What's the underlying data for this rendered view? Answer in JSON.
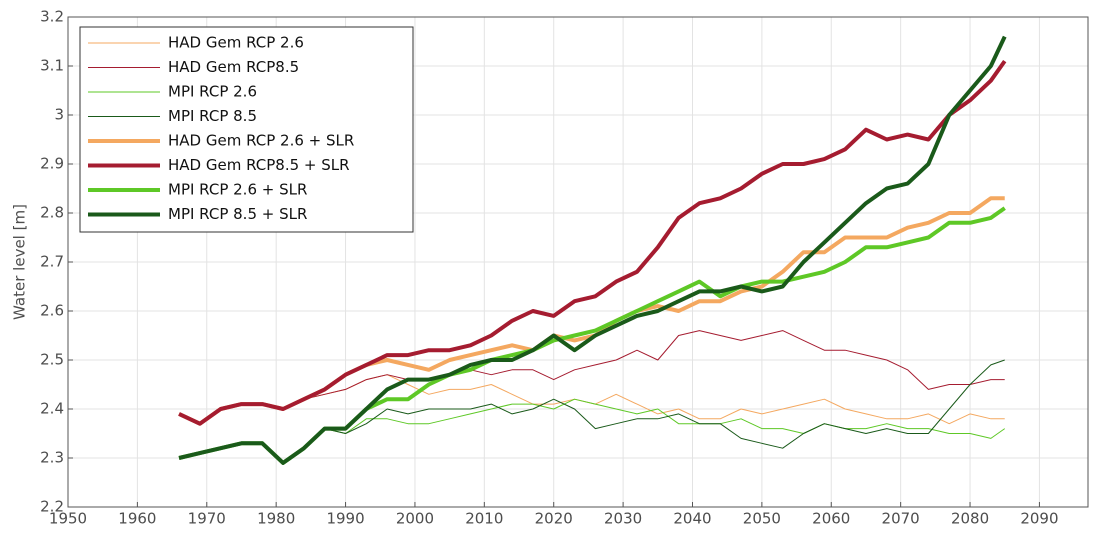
{
  "chart_data": {
    "type": "line",
    "y_label": "Water level [m]",
    "xlim": [
      1950,
      2097
    ],
    "xticks": [
      1950,
      1960,
      1970,
      1980,
      1990,
      2000,
      2010,
      2020,
      2030,
      2040,
      2050,
      2060,
      2070,
      2080,
      2090
    ],
    "ylim": [
      2.2,
      3.2
    ],
    "yticks": [
      2.2,
      2.3,
      2.4,
      2.5,
      2.6,
      2.7,
      2.8,
      2.9,
      3,
      3.1,
      3.2
    ],
    "grid": true,
    "legend": "upper left",
    "x": [
      1966,
      1969,
      1972,
      1975,
      1978,
      1981,
      1984,
      1987,
      1990,
      1993,
      1996,
      1999,
      2002,
      2005,
      2008,
      2011,
      2014,
      2017,
      2020,
      2023,
      2026,
      2029,
      2032,
      2035,
      2038,
      2041,
      2044,
      2047,
      2050,
      2053,
      2056,
      2059,
      2062,
      2065,
      2068,
      2071,
      2074,
      2077,
      2080,
      2083,
      2085
    ],
    "series": [
      {
        "name": "HAD Gem RCP 2.6",
        "color": "#f4a860",
        "linewidth": 1,
        "values": [
          2.39,
          2.37,
          2.4,
          2.41,
          2.41,
          2.4,
          2.42,
          2.43,
          2.44,
          2.46,
          2.47,
          2.45,
          2.43,
          2.44,
          2.44,
          2.45,
          2.43,
          2.41,
          2.41,
          2.42,
          2.41,
          2.43,
          2.41,
          2.39,
          2.4,
          2.38,
          2.38,
          2.4,
          2.39,
          2.4,
          2.41,
          2.42,
          2.4,
          2.39,
          2.38,
          2.38,
          2.39,
          2.37,
          2.39,
          2.38,
          2.38
        ]
      },
      {
        "name": "HAD Gem RCP8.5",
        "color": "#a51c30",
        "linewidth": 1,
        "values": [
          2.39,
          2.37,
          2.4,
          2.41,
          2.41,
          2.4,
          2.42,
          2.43,
          2.44,
          2.46,
          2.47,
          2.46,
          2.46,
          2.47,
          2.48,
          2.47,
          2.48,
          2.48,
          2.46,
          2.48,
          2.49,
          2.5,
          2.52,
          2.5,
          2.55,
          2.56,
          2.55,
          2.54,
          2.55,
          2.56,
          2.54,
          2.52,
          2.52,
          2.51,
          2.5,
          2.48,
          2.44,
          2.45,
          2.45,
          2.46,
          2.46
        ]
      },
      {
        "name": "MPI RCP 2.6",
        "color": "#5ec826",
        "linewidth": 1,
        "values": [
          2.3,
          2.31,
          2.32,
          2.33,
          2.33,
          2.29,
          2.32,
          2.36,
          2.35,
          2.38,
          2.38,
          2.37,
          2.37,
          2.38,
          2.39,
          2.4,
          2.41,
          2.41,
          2.4,
          2.42,
          2.41,
          2.4,
          2.39,
          2.4,
          2.37,
          2.37,
          2.37,
          2.38,
          2.36,
          2.36,
          2.35,
          2.37,
          2.36,
          2.36,
          2.37,
          2.36,
          2.36,
          2.35,
          2.35,
          2.34,
          2.36
        ]
      },
      {
        "name": "MPI RCP 8.5",
        "color": "#1a5a1a",
        "linewidth": 1,
        "values": [
          2.3,
          2.31,
          2.32,
          2.33,
          2.33,
          2.29,
          2.32,
          2.36,
          2.35,
          2.37,
          2.4,
          2.39,
          2.4,
          2.4,
          2.4,
          2.41,
          2.39,
          2.4,
          2.42,
          2.4,
          2.36,
          2.37,
          2.38,
          2.38,
          2.39,
          2.37,
          2.37,
          2.34,
          2.33,
          2.32,
          2.35,
          2.37,
          2.36,
          2.35,
          2.36,
          2.35,
          2.35,
          2.4,
          2.45,
          2.49,
          2.5
        ]
      },
      {
        "name": "HAD Gem RCP 2.6 + SLR",
        "color": "#f4a860",
        "linewidth": 4,
        "values": [
          2.39,
          2.37,
          2.4,
          2.41,
          2.41,
          2.4,
          2.42,
          2.44,
          2.47,
          2.49,
          2.5,
          2.49,
          2.48,
          2.5,
          2.51,
          2.52,
          2.53,
          2.52,
          2.55,
          2.54,
          2.55,
          2.58,
          2.6,
          2.61,
          2.6,
          2.62,
          2.62,
          2.64,
          2.65,
          2.68,
          2.72,
          2.72,
          2.75,
          2.75,
          2.75,
          2.77,
          2.78,
          2.8,
          2.8,
          2.83,
          2.83
        ]
      },
      {
        "name": "HAD Gem RCP8.5 + SLR",
        "color": "#a51c30",
        "linewidth": 4,
        "values": [
          2.39,
          2.37,
          2.4,
          2.41,
          2.41,
          2.4,
          2.42,
          2.44,
          2.47,
          2.49,
          2.51,
          2.51,
          2.52,
          2.52,
          2.53,
          2.55,
          2.58,
          2.6,
          2.59,
          2.62,
          2.63,
          2.66,
          2.68,
          2.73,
          2.79,
          2.82,
          2.83,
          2.85,
          2.88,
          2.9,
          2.9,
          2.91,
          2.93,
          2.97,
          2.95,
          2.96,
          2.95,
          3.0,
          3.03,
          3.07,
          3.11
        ]
      },
      {
        "name": "MPI RCP 2.6 + SLR",
        "color": "#5ec826",
        "linewidth": 4,
        "values": [
          2.3,
          2.31,
          2.32,
          2.33,
          2.33,
          2.29,
          2.32,
          2.36,
          2.36,
          2.4,
          2.42,
          2.42,
          2.45,
          2.47,
          2.48,
          2.5,
          2.51,
          2.52,
          2.54,
          2.55,
          2.56,
          2.58,
          2.6,
          2.62,
          2.64,
          2.66,
          2.63,
          2.65,
          2.66,
          2.66,
          2.67,
          2.68,
          2.7,
          2.73,
          2.73,
          2.74,
          2.75,
          2.78,
          2.78,
          2.79,
          2.81
        ]
      },
      {
        "name": "MPI RCP 8.5 + SLR",
        "color": "#1a5a1a",
        "linewidth": 4,
        "values": [
          2.3,
          2.31,
          2.32,
          2.33,
          2.33,
          2.29,
          2.32,
          2.36,
          2.36,
          2.4,
          2.44,
          2.46,
          2.46,
          2.47,
          2.49,
          2.5,
          2.5,
          2.52,
          2.55,
          2.52,
          2.55,
          2.57,
          2.59,
          2.6,
          2.62,
          2.64,
          2.64,
          2.65,
          2.64,
          2.65,
          2.7,
          2.74,
          2.78,
          2.82,
          2.85,
          2.86,
          2.9,
          3.0,
          3.05,
          3.1,
          3.16
        ]
      }
    ]
  }
}
